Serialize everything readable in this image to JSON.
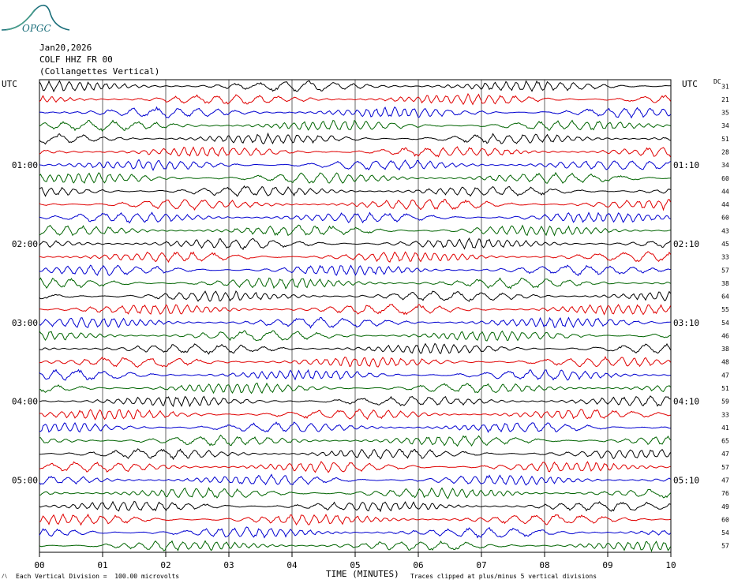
{
  "logo": {
    "text": "OPGC",
    "color": "#1a6e7a"
  },
  "header": {
    "date": "Jan20,2026",
    "station": "COLF HHZ FR 00",
    "description": "(Collangettes Vertical)"
  },
  "left_axis_label": "UTC",
  "right_axis_label": "UTC",
  "dc_label": "DC",
  "footer": {
    "left_note": "Each Vertical Division =  100.00 microvolts",
    "xlabel": "TIME (MINUTES)",
    "right_note": "Traces clipped at plus/minus 5 vertical divisions",
    "corner_mark": "/\\"
  },
  "chart_data": {
    "type": "line",
    "title": "",
    "xlabel": "TIME (MINUTES)",
    "ylabel": "UTC",
    "xlim": [
      0,
      10
    ],
    "x_ticks": [
      "00",
      "01",
      "02",
      "03",
      "04",
      "05",
      "06",
      "07",
      "08",
      "09",
      "10"
    ],
    "left_time_labels": [
      "01:00",
      "02:00",
      "03:00",
      "04:00",
      "05:00"
    ],
    "right_time_labels": [
      "01:10",
      "02:10",
      "03:10",
      "04:10",
      "05:10"
    ],
    "trace_colors": [
      "#000000",
      "#e00000",
      "#0000d0",
      "#006400"
    ],
    "trace_interval_minutes": 10,
    "dc_offsets": [
      31,
      21,
      35,
      34,
      51,
      28,
      34,
      60,
      44,
      44,
      60,
      43,
      45,
      33,
      57,
      38,
      64,
      55,
      54,
      46,
      38,
      48,
      47,
      51,
      59,
      33,
      41,
      65,
      47,
      57,
      47,
      76,
      49,
      60,
      54,
      57
    ],
    "grid": true
  }
}
